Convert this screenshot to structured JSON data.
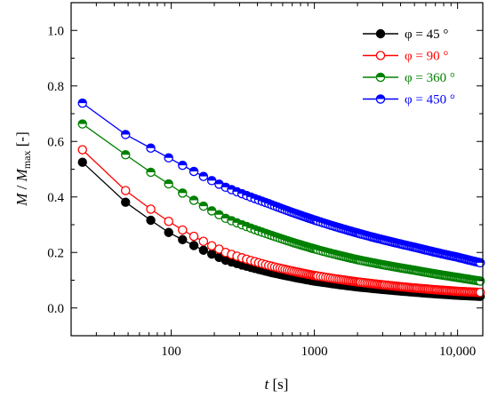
{
  "chart_data": {
    "type": "scatter",
    "xscale": "log",
    "xlim": [
      20,
      15000
    ],
    "ylim": [
      -0.1,
      1.1
    ],
    "grid": false,
    "legend_position": "top-right",
    "xlabel": {
      "var": "t",
      "unit": "[s]"
    },
    "ylabel": {
      "num": "M",
      "slash": " / ",
      "den": "M",
      "den_sub": "max",
      "unit": " [-]"
    },
    "xticks": [
      {
        "value": 100,
        "label": "100"
      },
      {
        "value": 1000,
        "label": "1000"
      },
      {
        "value": 10000,
        "label": "10,000"
      }
    ],
    "yticks": [
      {
        "value": 0.0,
        "label": "0.0"
      },
      {
        "value": 0.2,
        "label": "0.2"
      },
      {
        "value": 0.4,
        "label": "0.4"
      },
      {
        "value": 0.6,
        "label": "0.6"
      },
      {
        "value": 0.8,
        "label": "0.8"
      },
      {
        "value": 1.0,
        "label": "1.0"
      }
    ],
    "sample_interval_s": 24,
    "t_end_s": 14400,
    "series": [
      {
        "name": "φ = 45 °",
        "color": "#000000",
        "marker": "filled",
        "t": [
          24,
          48,
          72,
          96,
          120,
          144,
          168,
          192,
          216,
          240,
          480,
          1000,
          2000,
          5000,
          10000,
          14400
        ],
        "values": [
          0.525,
          0.381,
          0.316,
          0.272,
          0.246,
          0.225,
          0.208,
          0.194,
          0.182,
          0.172,
          0.13,
          0.097,
          0.076,
          0.057,
          0.046,
          0.042
        ]
      },
      {
        "name": "φ = 90 °",
        "color": "#ff0000",
        "marker": "open",
        "t": [
          24,
          48,
          72,
          96,
          120,
          144,
          168,
          192,
          216,
          240,
          480,
          1000,
          2000,
          5000,
          10000,
          14400
        ],
        "values": [
          0.57,
          0.423,
          0.356,
          0.312,
          0.281,
          0.258,
          0.24,
          0.224,
          0.212,
          0.2,
          0.153,
          0.117,
          0.094,
          0.072,
          0.06,
          0.056
        ]
      },
      {
        "name": "φ = 360 °",
        "color": "#008000",
        "marker": "half-filled",
        "t": [
          24,
          48,
          72,
          96,
          120,
          144,
          168,
          192,
          216,
          240,
          480,
          1000,
          2000,
          5000,
          10000,
          14400
        ],
        "values": [
          0.663,
          0.552,
          0.489,
          0.447,
          0.414,
          0.388,
          0.367,
          0.35,
          0.336,
          0.323,
          0.265,
          0.213,
          0.174,
          0.136,
          0.11,
          0.097
        ]
      },
      {
        "name": "φ = 450 °",
        "color": "#0000ff",
        "marker": "half-filled",
        "t": [
          24,
          48,
          72,
          96,
          120,
          144,
          168,
          192,
          216,
          240,
          480,
          1000,
          2000,
          5000,
          10000,
          14400
        ],
        "values": [
          0.738,
          0.625,
          0.576,
          0.541,
          0.514,
          0.492,
          0.474,
          0.459,
          0.446,
          0.435,
          0.376,
          0.317,
          0.27,
          0.219,
          0.183,
          0.163
        ]
      }
    ]
  }
}
